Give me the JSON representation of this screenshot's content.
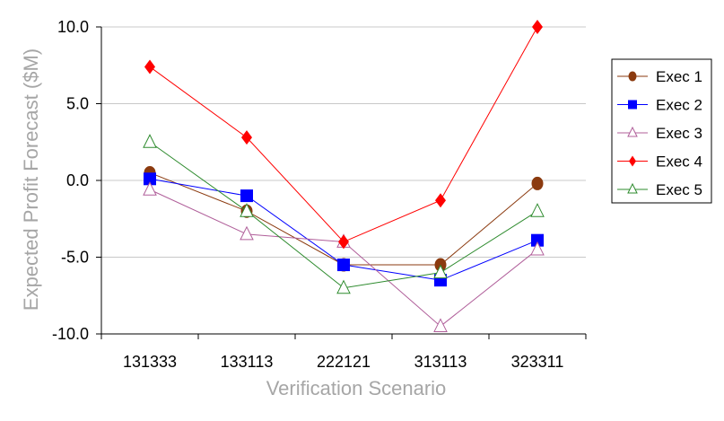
{
  "chart_data": {
    "type": "line",
    "xlabel": "Verification Scenario",
    "ylabel": "Expected Profit Forecast ($M)",
    "categories": [
      "131333",
      "133113",
      "222121",
      "313113",
      "323311"
    ],
    "ylim": [
      -10,
      10
    ],
    "yticks": [
      "10.0",
      "5.0",
      "0.0",
      "-5.0",
      "-10.0"
    ],
    "ytick_values": [
      10,
      5,
      0,
      -5,
      -10
    ],
    "grid": true,
    "legend_position": "right",
    "series": [
      {
        "name": "Exec 1",
        "values": [
          0.5,
          -2.0,
          -5.5,
          -5.5,
          -0.2
        ],
        "color": "#8B3A0F",
        "marker": "circle"
      },
      {
        "name": "Exec 2",
        "values": [
          0.1,
          -1.0,
          -5.5,
          -6.5,
          -3.9
        ],
        "color": "#0000FF",
        "marker": "square"
      },
      {
        "name": "Exec 3",
        "values": [
          -0.6,
          -3.5,
          -4.0,
          -9.5,
          -4.5
        ],
        "color": "#B05F9A",
        "marker": "triangle-open"
      },
      {
        "name": "Exec 4",
        "values": [
          7.4,
          2.8,
          -4.0,
          -1.3,
          10.0
        ],
        "color": "#FF0000",
        "marker": "diamond"
      },
      {
        "name": "Exec 5",
        "values": [
          2.5,
          -2.0,
          -7.0,
          -6.0,
          -2.0
        ],
        "color": "#2E8B2E",
        "marker": "triangle-open"
      }
    ]
  }
}
